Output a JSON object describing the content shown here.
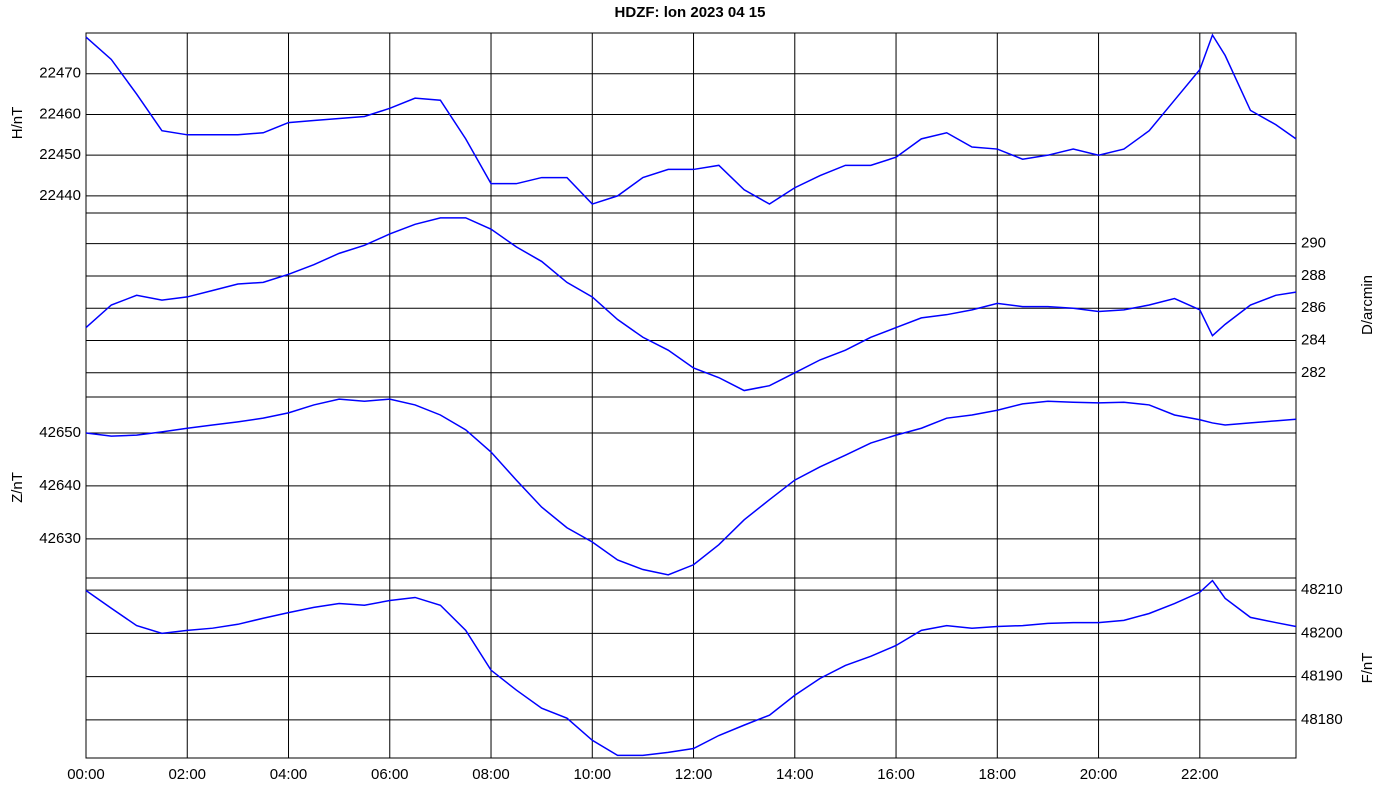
{
  "title": "HDZF: lon 2023 04 15",
  "chart_data": [
    {
      "type": "line",
      "ylabel": "H/nT",
      "axis_side": "left",
      "color": "#0000ff",
      "grid": true,
      "x": [
        0,
        0.5,
        1,
        1.5,
        2,
        2.5,
        3,
        3.5,
        4,
        4.5,
        5,
        5.5,
        6,
        6.5,
        7,
        7.5,
        8,
        8.5,
        9,
        9.5,
        10,
        10.5,
        11,
        11.5,
        12,
        12.5,
        13,
        13.5,
        14,
        14.5,
        15,
        15.5,
        16,
        16.5,
        17,
        17.5,
        18,
        18.5,
        19,
        19.5,
        20,
        20.5,
        21,
        21.5,
        22,
        22.25,
        22.5,
        23,
        23.5,
        23.9
      ],
      "values": [
        22479,
        22473.5,
        22465,
        22456,
        22455,
        22455,
        22455,
        22455.5,
        22458,
        22458.5,
        22459,
        22459.5,
        22461.5,
        22464,
        22463.5,
        22454,
        22443,
        22443,
        22444.5,
        22444.5,
        22438,
        22440,
        22444.5,
        22446.5,
        22446.5,
        22447.5,
        22441.5,
        22438,
        22442,
        22445,
        22447.5,
        22447.5,
        22449.5,
        22454,
        22455.5,
        22452,
        22451.5,
        22449,
        22450,
        22451.5,
        22450,
        22451.5,
        22456,
        22463.5,
        22471,
        22479.5,
        22474.5,
        22461,
        22457.5,
        22454
      ],
      "xlim": [
        0,
        23.9
      ],
      "xticks": [
        0,
        2,
        4,
        6,
        8,
        10,
        12,
        14,
        16,
        18,
        20,
        22
      ],
      "ylim": [
        22435.8,
        22480
      ],
      "yticks": [
        22440,
        22450,
        22460,
        22470
      ]
    },
    {
      "type": "line",
      "ylabel": "D/arcmin",
      "axis_side": "right",
      "color": "#0000ff",
      "grid": true,
      "x": [
        0,
        0.5,
        1,
        1.5,
        2,
        2.5,
        3,
        3.5,
        4,
        4.5,
        5,
        5.5,
        6,
        6.5,
        7,
        7.5,
        8,
        8.5,
        9,
        9.5,
        10,
        10.5,
        11,
        11.5,
        12,
        12.5,
        13,
        13.5,
        14,
        14.5,
        15,
        15.5,
        16,
        16.5,
        17,
        17.5,
        18,
        18.5,
        19,
        19.5,
        20,
        20.5,
        21,
        21.5,
        22,
        22.25,
        22.5,
        23,
        23.5,
        23.9
      ],
      "values": [
        284.8,
        286.2,
        286.8,
        286.5,
        286.7,
        287.1,
        287.5,
        287.6,
        288.1,
        288.7,
        289.4,
        289.9,
        290.6,
        291.2,
        291.6,
        291.6,
        290.9,
        289.8,
        288.9,
        287.6,
        286.7,
        285.3,
        284.2,
        283.4,
        282.3,
        281.7,
        280.9,
        281.2,
        282.0,
        282.8,
        283.4,
        284.2,
        284.8,
        285.4,
        285.6,
        285.9,
        286.3,
        286.1,
        286.1,
        286.0,
        285.8,
        285.9,
        286.2,
        286.6,
        285.9,
        284.3,
        285.0,
        286.2,
        286.8,
        287.0
      ],
      "xlim": [
        0,
        23.9
      ],
      "xticks": [
        0,
        2,
        4,
        6,
        8,
        10,
        12,
        14,
        16,
        18,
        20,
        22
      ],
      "ylim": [
        280.5,
        291.9
      ],
      "yticks": [
        282,
        284,
        286,
        288,
        290
      ]
    },
    {
      "type": "line",
      "ylabel": "Z/nT",
      "axis_side": "left",
      "color": "#0000ff",
      "grid": true,
      "x": [
        0,
        0.5,
        1,
        1.5,
        2,
        2.5,
        3,
        3.5,
        4,
        4.5,
        5,
        5.5,
        6,
        6.5,
        7,
        7.5,
        8,
        8.5,
        9,
        9.5,
        10,
        10.5,
        11,
        11.5,
        12,
        12.5,
        13,
        13.5,
        14,
        14.5,
        15,
        15.5,
        16,
        16.5,
        17,
        17.5,
        18,
        18.5,
        19,
        19.5,
        20,
        20.5,
        21,
        21.5,
        22,
        22.25,
        22.5,
        23,
        23.5,
        23.9
      ],
      "values": [
        42650,
        42649.4,
        42649.6,
        42650.2,
        42650.9,
        42651.5,
        42652.1,
        42652.8,
        42653.8,
        42655.3,
        42656.4,
        42656,
        42656.4,
        42655.3,
        42653.4,
        42650.6,
        42646.4,
        42641.1,
        42636,
        42632.1,
        42629.4,
        42626,
        42624.2,
        42623.2,
        42625.1,
        42628.9,
        42633.6,
        42637.4,
        42641.1,
        42643.6,
        42645.8,
        42648.1,
        42649.6,
        42650.9,
        42652.8,
        42653.4,
        42654.3,
        42655.5,
        42656,
        42655.8,
        42655.7,
        42655.8,
        42655.3,
        42653.4,
        42652.5,
        42651.9,
        42651.5,
        42651.9,
        42652.3,
        42652.6
      ],
      "xlim": [
        0,
        23.9
      ],
      "xticks": [
        0,
        2,
        4,
        6,
        8,
        10,
        12,
        14,
        16,
        18,
        20,
        22
      ],
      "ylim": [
        42622.6,
        42656.8
      ],
      "yticks": [
        42630,
        42640,
        42650
      ]
    },
    {
      "type": "line",
      "ylabel": "F/nT",
      "axis_side": "right",
      "color": "#0000ff",
      "grid": true,
      "x": [
        0,
        0.5,
        1,
        1.5,
        2,
        2.5,
        3,
        3.5,
        4,
        4.5,
        5,
        5.5,
        6,
        6.5,
        7,
        7.5,
        8,
        8.5,
        9,
        9.5,
        10,
        10.5,
        11,
        11.5,
        12,
        12.5,
        13,
        13.5,
        14,
        14.5,
        15,
        15.5,
        16,
        16.5,
        17,
        17.5,
        18,
        18.5,
        19,
        19.5,
        20,
        20.5,
        21,
        21.5,
        22,
        22.25,
        22.5,
        23,
        23.5,
        23.9
      ],
      "values": [
        48209.9,
        48205.8,
        48201.8,
        48200,
        48200.7,
        48201.2,
        48202.1,
        48203.5,
        48204.8,
        48206,
        48206.9,
        48206.5,
        48207.6,
        48208.3,
        48206.5,
        48200.7,
        48191.5,
        48186.9,
        48182.7,
        48180.4,
        48175.3,
        48171.8,
        48171.8,
        48172.5,
        48173.4,
        48176.4,
        48178.8,
        48181.1,
        48185.7,
        48189.6,
        48192.6,
        48194.7,
        48197.2,
        48200.7,
        48201.8,
        48201.2,
        48201.6,
        48201.8,
        48202.3,
        48202.5,
        48202.5,
        48203,
        48204.6,
        48206.9,
        48209.5,
        48212.2,
        48208.1,
        48203.7,
        48202.5,
        48201.6
      ],
      "xlim": [
        0,
        23.9
      ],
      "xticks": [
        {
          "value": 0,
          "label": "00:00"
        },
        {
          "value": 2,
          "label": "02:00"
        },
        {
          "value": 4,
          "label": "04:00"
        },
        {
          "value": 6,
          "label": "06:00"
        },
        {
          "value": 8,
          "label": "08:00"
        },
        {
          "value": 10,
          "label": "10:00"
        },
        {
          "value": 12,
          "label": "12:00"
        },
        {
          "value": 14,
          "label": "14:00"
        },
        {
          "value": 16,
          "label": "16:00"
        },
        {
          "value": 18,
          "label": "18:00"
        },
        {
          "value": 20,
          "label": "20:00"
        },
        {
          "value": 22,
          "label": "22:00"
        }
      ],
      "ylim": [
        48171.2,
        48212.8
      ],
      "yticks": [
        48180,
        48190,
        48200,
        48210
      ]
    }
  ]
}
